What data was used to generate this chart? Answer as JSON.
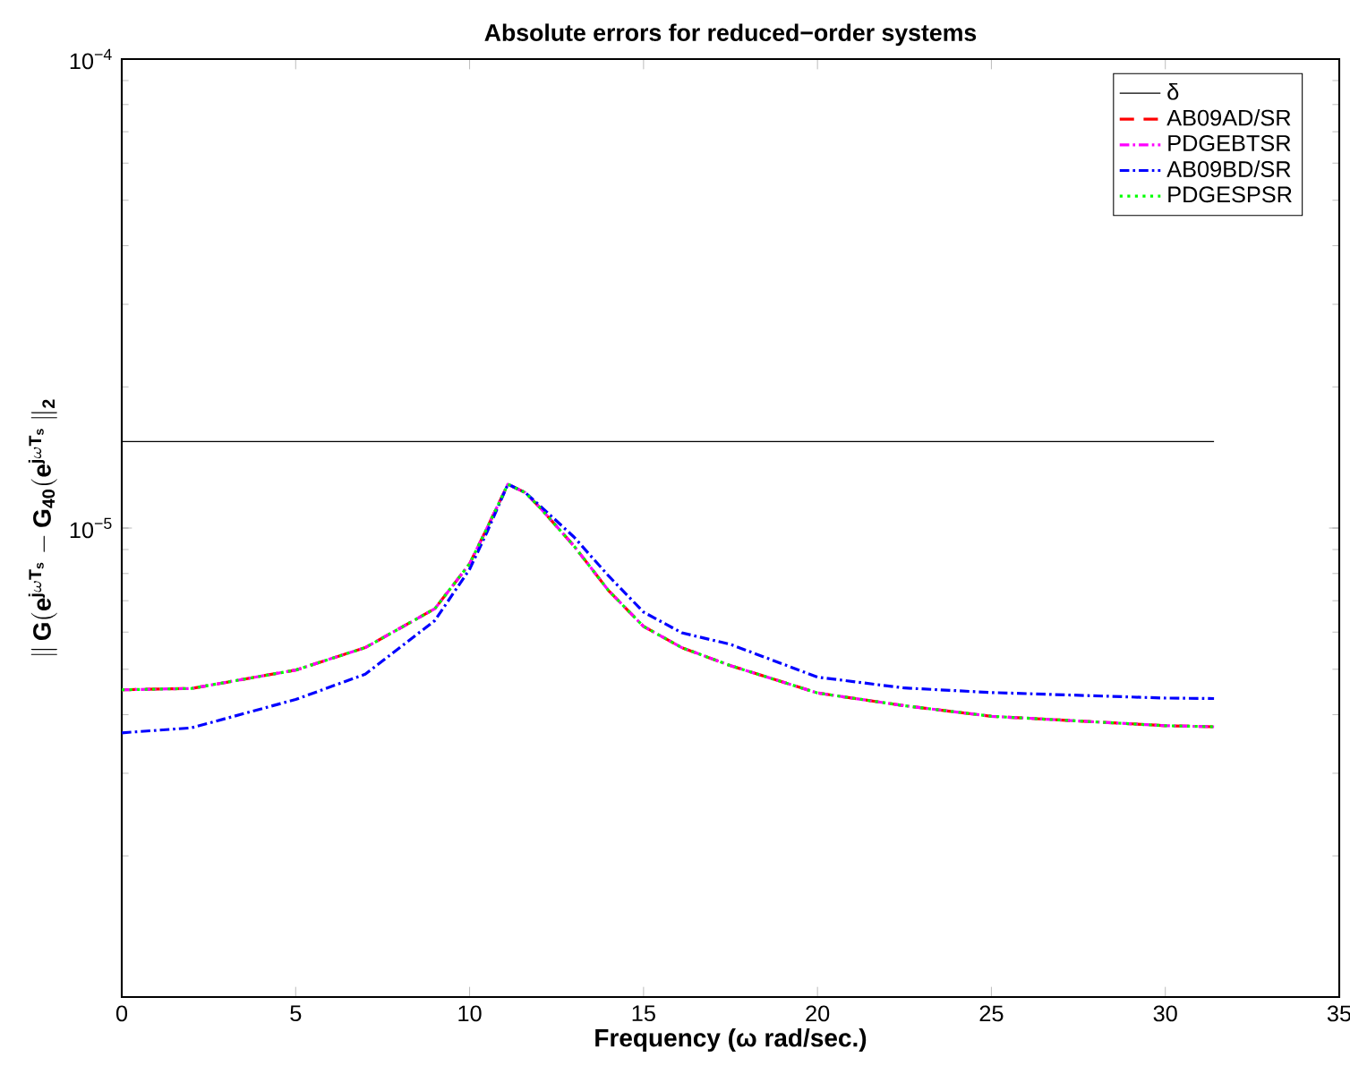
{
  "chart_data": {
    "type": "line",
    "title": "Absolute errors for reduced−order systems",
    "xlabel": "Frequency (ω rad/sec.)",
    "ylabel": "\\mathbf{\\|\\,G(e^{j\\omega T_s}-G_{40}(e^{j\\omega T_s}\\,\\|_2}",
    "xlim": [
      0,
      35
    ],
    "xticks": [
      0,
      5,
      10,
      15,
      20,
      25,
      30,
      35
    ],
    "ylim": [
      1e-06,
      0.0001
    ],
    "yticks": [
      {
        "value": 1e-06,
        "label": null
      },
      {
        "value": 1e-05,
        "label": "10$^{−5}$"
      },
      {
        "value": 0.0001,
        "label": "10$^{−4}$"
      }
    ],
    "log": "y",
    "legend": "top right",
    "series": [
      {
        "name": "δ",
        "color": "#000000",
        "line_style": "solid",
        "x": [
          0,
          31.4
        ],
        "values": [
          1.53e-05,
          1.53e-05
        ]
      },
      {
        "name": "AB09AD/SR",
        "color": "#ff0000",
        "line_style": "dashed",
        "x": [
          0,
          2,
          5,
          7,
          9,
          10,
          10.5,
          11.1,
          11.6,
          12,
          13,
          14,
          15,
          16.1,
          17.5,
          20,
          22.5,
          25,
          30,
          31.4
        ],
        "values": [
          4.52e-06,
          4.55e-06,
          4.98e-06,
          5.56e-06,
          6.73e-06,
          8.39e-06,
          1e-05,
          1.24e-05,
          1.19e-05,
          1.11e-05,
          9.16e-06,
          7.35e-06,
          6.17e-06,
          5.56e-06,
          5.09e-06,
          4.45e-06,
          4.18e-06,
          3.97e-06,
          3.79e-06,
          3.77e-06
        ]
      },
      {
        "name": "PDGEBTSR",
        "color": "#ff00ff",
        "line_style": "dashdot",
        "x": [
          0,
          2,
          5,
          7,
          9,
          10,
          10.5,
          11.1,
          11.6,
          12,
          13,
          14,
          15,
          16.1,
          17.5,
          20,
          22.5,
          25,
          30,
          31.4
        ],
        "values": [
          4.52e-06,
          4.55e-06,
          4.98e-06,
          5.56e-06,
          6.73e-06,
          8.39e-06,
          1e-05,
          1.24e-05,
          1.19e-05,
          1.11e-05,
          9.16e-06,
          7.35e-06,
          6.17e-06,
          5.56e-06,
          5.09e-06,
          4.45e-06,
          4.18e-06,
          3.97e-06,
          3.79e-06,
          3.77e-06
        ]
      },
      {
        "name": "AB09BD/SR",
        "color": "#0000ff",
        "line_style": "dashdot",
        "x": [
          0,
          2,
          5,
          7,
          9,
          10,
          10.5,
          11.1,
          11.6,
          12,
          13,
          14,
          15,
          16.1,
          17.5,
          20,
          22.5,
          25,
          30,
          31.4
        ],
        "values": [
          3.66e-06,
          3.75e-06,
          4.31e-06,
          4.88e-06,
          6.35e-06,
          8.17e-06,
          9.8e-06,
          1.24e-05,
          1.19e-05,
          1.12e-05,
          9.57e-06,
          7.9e-06,
          6.62e-06,
          5.98e-06,
          5.65e-06,
          4.81e-06,
          4.56e-06,
          4.46e-06,
          4.34e-06,
          4.33e-06
        ]
      },
      {
        "name": "PDGESPSR",
        "color": "#00ff00",
        "line_style": "dotted",
        "x": [
          0,
          2,
          5,
          7,
          9,
          10,
          10.5,
          11.1,
          11.6,
          12,
          13,
          14,
          15,
          16.1,
          17.5,
          20,
          22.5,
          25,
          30,
          31.4
        ],
        "values": [
          4.52e-06,
          4.55e-06,
          4.98e-06,
          5.56e-06,
          6.73e-06,
          8.39e-06,
          1e-05,
          1.24e-05,
          1.19e-05,
          1.11e-05,
          9.16e-06,
          7.35e-06,
          6.17e-06,
          5.56e-06,
          5.09e-06,
          4.45e-06,
          4.18e-06,
          3.97e-06,
          3.79e-06,
          3.77e-06
        ]
      }
    ]
  }
}
